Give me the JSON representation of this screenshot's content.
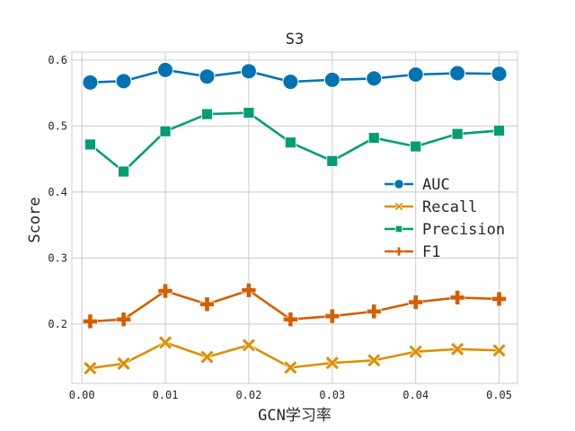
{
  "chart_data": {
    "type": "line",
    "title": "S3",
    "xlabel": "GCN学习率",
    "ylabel": "Score",
    "xlim": [
      -0.0012,
      0.0522
    ],
    "ylim": [
      0.11,
      0.612
    ],
    "xticks": [
      0.0,
      0.01,
      0.02,
      0.03,
      0.04,
      0.05
    ],
    "xtick_labels": [
      "0.00",
      "0.01",
      "0.02",
      "0.03",
      "0.04",
      "0.05"
    ],
    "yticks": [
      0.2,
      0.3,
      0.4,
      0.5,
      0.6
    ],
    "ytick_labels": [
      "0.2",
      "0.3",
      "0.4",
      "0.5",
      "0.6"
    ],
    "grid": true,
    "legend_position": "center-right",
    "x": [
      0.001,
      0.005,
      0.01,
      0.015,
      0.02,
      0.025,
      0.03,
      0.035,
      0.04,
      0.045,
      0.05
    ],
    "series": [
      {
        "name": "AUC",
        "marker": "circle",
        "color": "#0173b2",
        "values": [
          0.566,
          0.568,
          0.585,
          0.575,
          0.583,
          0.567,
          0.57,
          0.572,
          0.578,
          0.58,
          0.579
        ]
      },
      {
        "name": "Recall",
        "marker": "x",
        "color": "#de8f05",
        "values": [
          0.133,
          0.14,
          0.172,
          0.15,
          0.168,
          0.134,
          0.141,
          0.145,
          0.158,
          0.162,
          0.16
        ]
      },
      {
        "name": "Precision",
        "marker": "square",
        "color": "#029e73",
        "values": [
          0.472,
          0.431,
          0.492,
          0.518,
          0.52,
          0.475,
          0.447,
          0.482,
          0.469,
          0.488,
          0.493
        ]
      },
      {
        "name": "F1",
        "marker": "plus",
        "color": "#d55e00",
        "values": [
          0.204,
          0.207,
          0.25,
          0.23,
          0.251,
          0.207,
          0.212,
          0.219,
          0.233,
          0.24,
          0.238
        ]
      }
    ]
  }
}
